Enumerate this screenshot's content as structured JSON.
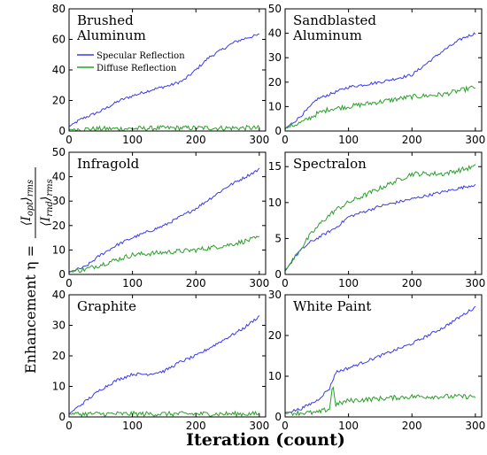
{
  "figure": {
    "xlabel": "Iteration (count)",
    "ylabel_text": "Enhancement η =",
    "ylabel_numerator": "⟨I",
    "ylabel_numerator_sub": "opt",
    "ylabel_numerator_close": "⟩",
    "ylabel_numerator_rms": "rms",
    "ylabel_denominator": "⟨I",
    "ylabel_denominator_sub": "rnd",
    "ylabel_denominator_close": "⟩",
    "ylabel_denominator_rms": "rms"
  },
  "legend": {
    "specular": "Specular Reflection",
    "diffuse": "Diffuse Reflection",
    "specular_color": "#3a3aee",
    "diffuse_color": "#2aa02a"
  },
  "chart_data": [
    {
      "type": "line",
      "title_lines": [
        "Brushed",
        "Aluminum"
      ],
      "xlim": [
        0,
        310
      ],
      "ylim": [
        0,
        80
      ],
      "xticks": [
        0,
        100,
        200,
        300
      ],
      "yticks": [
        0,
        20,
        40,
        60,
        80
      ],
      "series": [
        {
          "name": "Specular Reflection",
          "x": [
            0,
            20,
            50,
            80,
            100,
            130,
            160,
            180,
            200,
            220,
            240,
            260,
            280,
            300
          ],
          "y": [
            3,
            8,
            13,
            20,
            23,
            27,
            30,
            33,
            40,
            48,
            53,
            58,
            61,
            63
          ]
        },
        {
          "name": "Diffuse Reflection",
          "x": [
            0,
            50,
            100,
            150,
            200,
            250,
            300
          ],
          "y": [
            1,
            1.5,
            1.5,
            2,
            2,
            2,
            2
          ]
        }
      ]
    },
    {
      "type": "line",
      "title_lines": [
        "Sandblasted",
        "Aluminum"
      ],
      "xlim": [
        0,
        310
      ],
      "ylim": [
        0,
        50
      ],
      "xticks": [
        0,
        100,
        200,
        300
      ],
      "yticks": [
        0,
        10,
        20,
        30,
        40,
        50
      ],
      "series": [
        {
          "x": [
            0,
            20,
            40,
            50,
            80,
            100,
            150,
            200,
            230,
            250,
            280,
            300
          ],
          "y": [
            1,
            5,
            10,
            13,
            16,
            18,
            20,
            23,
            29,
            33,
            38,
            40
          ]
        },
        {
          "x": [
            0,
            30,
            50,
            70,
            100,
            150,
            200,
            250,
            300
          ],
          "y": [
            1,
            4,
            7,
            9,
            10,
            12,
            14,
            15,
            18
          ]
        }
      ]
    },
    {
      "type": "line",
      "title_lines": [
        "Infragold"
      ],
      "xlim": [
        0,
        310
      ],
      "ylim": [
        0,
        50
      ],
      "xticks": [
        0,
        100,
        200,
        300
      ],
      "yticks": [
        0,
        10,
        20,
        30,
        40,
        50
      ],
      "series": [
        {
          "x": [
            0,
            25,
            50,
            75,
            100,
            150,
            200,
            250,
            300
          ],
          "y": [
            1,
            3,
            8,
            12,
            15,
            20,
            27,
            36,
            43
          ]
        },
        {
          "x": [
            0,
            25,
            50,
            75,
            100,
            150,
            200,
            250,
            300
          ],
          "y": [
            1,
            2,
            4,
            6,
            8,
            9,
            10,
            12,
            15
          ]
        }
      ]
    },
    {
      "type": "line",
      "title_lines": [
        "Spectralon"
      ],
      "xlim": [
        0,
        310
      ],
      "ylim": [
        0,
        17
      ],
      "xticks": [
        0,
        100,
        200,
        300
      ],
      "yticks": [
        0,
        5,
        10,
        15
      ],
      "series": [
        {
          "x": [
            0,
            20,
            40,
            60,
            80,
            100,
            150,
            200,
            250,
            300
          ],
          "y": [
            0.5,
            3,
            4.5,
            5.5,
            6.5,
            8,
            9.5,
            10.5,
            11.5,
            12.5
          ]
        },
        {
          "x": [
            0,
            20,
            40,
            60,
            80,
            100,
            150,
            200,
            250,
            300
          ],
          "y": [
            0.5,
            3,
            5.5,
            7.5,
            9,
            10,
            12,
            14,
            14,
            15
          ]
        }
      ]
    },
    {
      "type": "line",
      "title_lines": [
        "Graphite"
      ],
      "xlim": [
        0,
        310
      ],
      "ylim": [
        0,
        40
      ],
      "xticks": [
        0,
        100,
        200,
        300
      ],
      "yticks": [
        0,
        10,
        20,
        30,
        40
      ],
      "series": [
        {
          "x": [
            0,
            25,
            50,
            75,
            100,
            125,
            150,
            175,
            200,
            225,
            250,
            275,
            300
          ],
          "y": [
            1,
            5,
            9,
            12,
            14,
            14,
            15,
            18,
            20,
            23,
            26,
            29,
            33
          ]
        },
        {
          "x": [
            0,
            100,
            200,
            300
          ],
          "y": [
            1,
            1,
            1,
            1
          ]
        }
      ]
    },
    {
      "type": "line",
      "title_lines": [
        "White Paint"
      ],
      "xlim": [
        0,
        310
      ],
      "ylim": [
        0,
        30
      ],
      "xticks": [
        0,
        100,
        200,
        300
      ],
      "yticks": [
        0,
        10,
        20,
        30
      ],
      "series": [
        {
          "x": [
            0,
            25,
            50,
            70,
            80,
            100,
            150,
            200,
            250,
            300
          ],
          "y": [
            1,
            2,
            4,
            7,
            11,
            12,
            15,
            18,
            22,
            27
          ]
        },
        {
          "x": [
            0,
            50,
            70,
            75,
            80,
            100,
            150,
            200,
            250,
            300
          ],
          "y": [
            1,
            1,
            2,
            8,
            3,
            4,
            4.5,
            5,
            5,
            5
          ]
        }
      ]
    }
  ]
}
